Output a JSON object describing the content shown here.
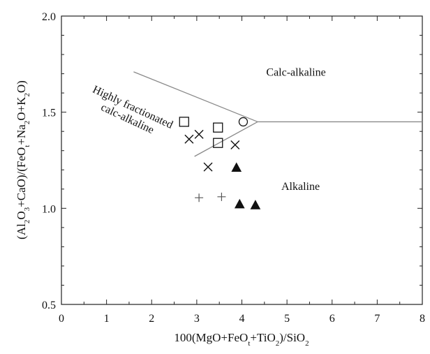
{
  "chart_data": {
    "type": "scatter",
    "title": "",
    "xlabel": {
      "parts": [
        [
          "100(MgO+FeO",
          ""
        ],
        [
          "t",
          "sub"
        ],
        [
          "+TiO",
          ""
        ],
        [
          "2",
          "sub"
        ],
        [
          ")/SiO",
          ""
        ],
        [
          "2",
          "sub"
        ]
      ]
    },
    "ylabel": {
      "parts": [
        [
          "(Al",
          ""
        ],
        [
          "2",
          "sub"
        ],
        [
          "O",
          ""
        ],
        [
          "3",
          "sub"
        ],
        [
          "+CaO)/(FeO",
          ""
        ],
        [
          "t",
          "sub"
        ],
        [
          "+Na",
          ""
        ],
        [
          "2",
          "sub"
        ],
        [
          "O+K",
          ""
        ],
        [
          "2",
          "sub"
        ],
        [
          "O)",
          ""
        ]
      ]
    },
    "xlim": [
      0,
      8
    ],
    "ylim": [
      0.5,
      2.0
    ],
    "xticks": [
      0,
      1,
      2,
      3,
      4,
      5,
      6,
      7,
      8
    ],
    "xtick_labels": [
      "0",
      "1",
      "2",
      "3",
      "4",
      "5",
      "6",
      "7",
      "8"
    ],
    "yticks": [
      0.5,
      1.0,
      1.5,
      2.0
    ],
    "ytick_labels": [
      "0.5",
      "1.0",
      "1.5",
      "2.0"
    ],
    "grid": false,
    "boundary_lines": [
      {
        "x": [
          1.6,
          4.35
        ],
        "y": [
          1.71,
          1.45
        ]
      },
      {
        "x": [
          4.35,
          8.0
        ],
        "y": [
          1.45,
          1.45
        ]
      },
      {
        "x": [
          2.95,
          4.35
        ],
        "y": [
          1.27,
          1.45
        ]
      }
    ],
    "region_labels": [
      {
        "text": "Calc-alkaline",
        "x": 5.2,
        "y": 1.69,
        "rotate": 0,
        "lines": [
          "Calc-alkaline"
        ]
      },
      {
        "text": "Highly fractionated calc-alkaline",
        "x": 1.55,
        "y": 1.51,
        "rotate": 25,
        "lines": [
          "Highly fractionated",
          "calc-alkaline"
        ]
      },
      {
        "text": "Alkaline",
        "x": 5.3,
        "y": 1.095,
        "rotate": 0,
        "lines": [
          "Alkaline"
        ]
      }
    ],
    "series": [
      {
        "marker": "square",
        "points": [
          [
            2.72,
            1.45
          ],
          [
            3.47,
            1.42
          ],
          [
            3.47,
            1.34
          ]
        ]
      },
      {
        "marker": "cross",
        "points": [
          [
            2.83,
            1.36
          ],
          [
            3.05,
            1.385
          ],
          [
            3.25,
            1.215
          ],
          [
            3.85,
            1.33
          ]
        ]
      },
      {
        "marker": "circle",
        "points": [
          [
            4.03,
            1.45
          ]
        ]
      },
      {
        "marker": "triangle",
        "points": [
          [
            3.88,
            1.21
          ],
          [
            3.95,
            1.02
          ],
          [
            4.3,
            1.015
          ]
        ]
      },
      {
        "marker": "plus",
        "points": [
          [
            3.05,
            1.055
          ],
          [
            3.55,
            1.06
          ]
        ]
      }
    ]
  }
}
